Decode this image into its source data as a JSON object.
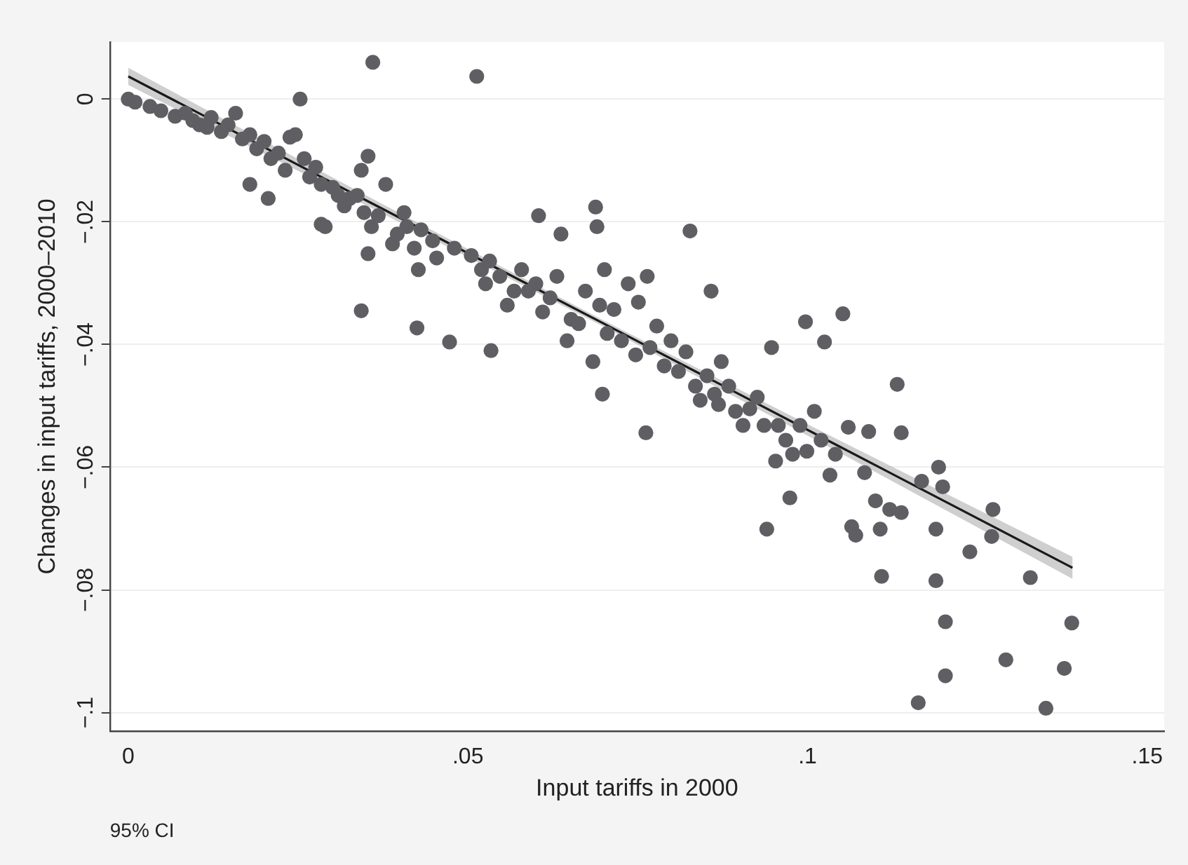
{
  "chart_data": {
    "type": "scatter",
    "xlabel": "Input tariffs in 2000",
    "ylabel": "Changes in input tariffs, 2000–2010",
    "xlim": [
      -0.0027,
      0.1525
    ],
    "ylim": [
      -0.103,
      0.0093
    ],
    "xticks": [
      0,
      {
        "value": 0.05,
        "label": ".05"
      },
      {
        "value": 0.1,
        "label": ".1"
      },
      {
        "value": 0.15,
        "label": ".15"
      }
    ],
    "yticks": [
      0,
      {
        "value": -0.02,
        "label": "−.02"
      },
      {
        "value": -0.04,
        "label": "−.04"
      },
      {
        "value": -0.06,
        "label": "−.06"
      },
      {
        "value": -0.08,
        "label": "−.08"
      },
      {
        "value": -0.1,
        "label": "−.1"
      }
    ],
    "grid": "y",
    "legend": false,
    "annotations": [
      "95% CI"
    ],
    "series": [
      {
        "type": "scatter",
        "marker": "circle",
        "color": "#5f5f63",
        "x": [
          0,
          0.001,
          0.0032,
          0.0048,
          0.0069,
          0.0084,
          0.0095,
          0.0105,
          0.0116,
          0.0122,
          0.0137,
          0.0147,
          0.0158,
          0.0168,
          0.0179,
          0.0179,
          0.0189,
          0.02,
          0.0206,
          0.021,
          0.0221,
          0.0231,
          0.0238,
          0.0246,
          0.0253,
          0.0259,
          0.0267,
          0.0276,
          0.0284,
          0.0284,
          0.029,
          0.0301,
          0.0309,
          0.0318,
          0.0326,
          0.0337,
          0.0343,
          0.0343,
          0.0347,
          0.0353,
          0.0358,
          0.0353,
          0.036,
          0.0368,
          0.0379,
          0.0389,
          0.0396,
          0.0406,
          0.041,
          0.0421,
          0.0427,
          0.0425,
          0.0431,
          0.0448,
          0.0454,
          0.0473,
          0.048,
          0.0505,
          0.0513,
          0.052,
          0.0526,
          0.0532,
          0.0534,
          0.0547,
          0.0558,
          0.0568,
          0.0579,
          0.0589,
          0.06,
          0.0604,
          0.061,
          0.0621,
          0.0631,
          0.0637,
          0.0646,
          0.0652,
          0.0663,
          0.0673,
          0.0684,
          0.0688,
          0.069,
          0.0694,
          0.0698,
          0.0701,
          0.0705,
          0.0715,
          0.0726,
          0.0736,
          0.0747,
          0.0751,
          0.0762,
          0.0764,
          0.0768,
          0.0778,
          0.0789,
          0.0799,
          0.081,
          0.0821,
          0.0827,
          0.0835,
          0.0842,
          0.0852,
          0.0858,
          0.0863,
          0.0869,
          0.0873,
          0.0884,
          0.0894,
          0.0905,
          0.0915,
          0.0926,
          0.0936,
          0.094,
          0.0947,
          0.0953,
          0.0957,
          0.0968,
          0.0974,
          0.0978,
          0.0989,
          0.0997,
          0.0999,
          0.101,
          0.102,
          0.1025,
          0.1033,
          0.1041,
          0.1052,
          0.106,
          0.1065,
          0.1071,
          0.1084,
          0.109,
          0.11,
          0.1107,
          0.1109,
          0.1121,
          0.1132,
          0.1138,
          0.1138,
          0.1163,
          0.1168,
          0.1189,
          0.1189,
          0.1193,
          0.1199,
          0.1203,
          0.1203,
          0.1239,
          0.1271,
          0.1273,
          0.1292,
          0.1328,
          0.1351,
          0.1378,
          0.1389
        ],
        "values": [
          0,
          -0.0005,
          -0.0012,
          -0.0019,
          -0.0028,
          -0.0023,
          -0.0035,
          -0.0042,
          -0.0046,
          -0.003,
          -0.0053,
          -0.0042,
          -0.0023,
          -0.0065,
          -0.0058,
          -0.0139,
          -0.0081,
          -0.0069,
          -0.0162,
          -0.0097,
          -0.0088,
          -0.0116,
          -0.0062,
          -0.0058,
          0,
          -0.0097,
          -0.0127,
          -0.0111,
          -0.0139,
          -0.0204,
          -0.0208,
          -0.0144,
          -0.0157,
          -0.0174,
          -0.0162,
          -0.0157,
          -0.0116,
          -0.0345,
          -0.0185,
          -0.0093,
          -0.0208,
          -0.0252,
          0.006,
          -0.019,
          -0.0139,
          -0.0236,
          -0.022,
          -0.0185,
          -0.0208,
          -0.0243,
          -0.0278,
          -0.0373,
          -0.0213,
          -0.0231,
          -0.0259,
          -0.0396,
          -0.0243,
          -0.0255,
          0.0037,
          -0.0278,
          -0.0301,
          -0.0264,
          -0.041,
          -0.0289,
          -0.0336,
          -0.0313,
          -0.0278,
          -0.0313,
          -0.0301,
          -0.019,
          -0.0347,
          -0.0324,
          -0.0289,
          -0.022,
          -0.0394,
          -0.0359,
          -0.0366,
          -0.0313,
          -0.0428,
          -0.0176,
          -0.0208,
          -0.0336,
          -0.0481,
          -0.0278,
          -0.0382,
          -0.0343,
          -0.0394,
          -0.0301,
          -0.0417,
          -0.0331,
          -0.0544,
          -0.0289,
          -0.0405,
          -0.037,
          -0.0435,
          -0.0394,
          -0.0444,
          -0.0412,
          -0.0215,
          -0.0468,
          -0.0491,
          -0.0451,
          -0.0313,
          -0.0481,
          -0.0498,
          -0.0428,
          -0.0468,
          -0.0509,
          -0.0532,
          -0.0505,
          -0.0486,
          -0.0532,
          -0.0701,
          -0.0405,
          -0.059,
          -0.0532,
          -0.0556,
          -0.065,
          -0.0579,
          -0.0532,
          -0.0363,
          -0.0574,
          -0.0509,
          -0.0556,
          -0.0396,
          -0.0613,
          -0.0579,
          -0.035,
          -0.0535,
          -0.0697,
          -0.0711,
          -0.0609,
          -0.0542,
          -0.0655,
          -0.0701,
          -0.0778,
          -0.0669,
          -0.0465,
          -0.0544,
          -0.0674,
          -0.0984,
          -0.0623,
          -0.0701,
          -0.0785,
          -0.06,
          -0.0632,
          -0.0852,
          -0.094,
          -0.0738,
          -0.0713,
          -0.0669,
          -0.0914,
          -0.078,
          -0.0993,
          -0.0928,
          -0.0854
        ]
      },
      {
        "type": "line",
        "marker": "none",
        "color": "#1a1a1a",
        "line_style": "solid",
        "x": [
          0,
          0.035,
          0.07,
          0.105,
          0.139
        ],
        "values": [
          0.0037,
          -0.0165,
          -0.0366,
          -0.0568,
          -0.0764
        ],
        "lower": [
          0.0023,
          -0.0173,
          -0.0371,
          -0.0578,
          -0.0782
        ],
        "upper": [
          0.0051,
          -0.0157,
          -0.0361,
          -0.0558,
          -0.0746
        ]
      }
    ]
  }
}
